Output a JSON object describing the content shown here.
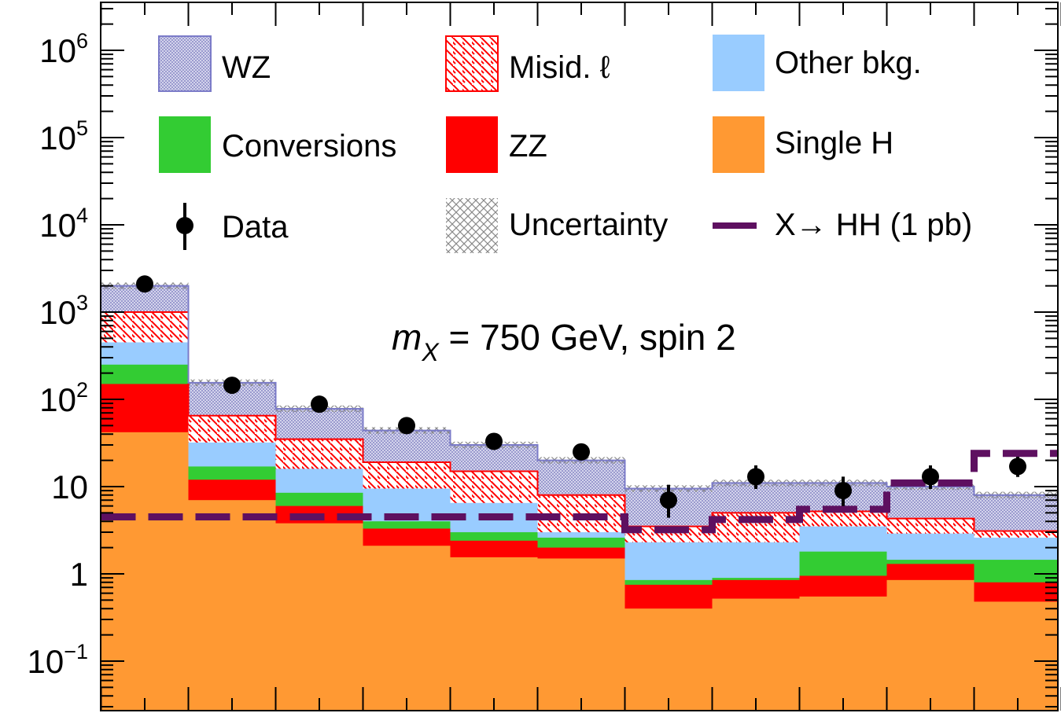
{
  "chart_data": {
    "type": "bar",
    "log_scale_y": true,
    "ylim": [
      0.025,
      5000000
    ],
    "n_bins": 11,
    "y_tick_labels": [
      {
        "value": 1000000,
        "mantissa": "10",
        "exp": "6"
      },
      {
        "value": 100000,
        "mantissa": "10",
        "exp": "5"
      },
      {
        "value": 10000,
        "mantissa": "10",
        "exp": "4"
      },
      {
        "value": 1000,
        "mantissa": "10",
        "exp": "3"
      },
      {
        "value": 100,
        "mantissa": "10",
        "exp": "2"
      },
      {
        "value": 10,
        "mantissa": "10",
        "exp": ""
      },
      {
        "value": 1,
        "mantissa": "1",
        "exp": ""
      },
      {
        "value": 0.1,
        "mantissa": "10",
        "exp": "−1"
      }
    ],
    "annotation": {
      "prefix": "m",
      "subscript": "X",
      "rest": " = 750 GeV, spin 2"
    },
    "legend": {
      "wz": "WZ",
      "misid": "Misid. ℓ",
      "other": "Other bkg.",
      "conversions": "Conversions",
      "zz": "ZZ",
      "singleh": "Single H",
      "data": "Data",
      "uncertainty": "Uncertainty",
      "signal": "X→ HH (1 pb)"
    },
    "colors": {
      "wz_fill": "#c8c8e8",
      "wz_line": "#7b7bc8",
      "misid": "#ff0000",
      "other": "#99ccff",
      "conversions": "#33cc33",
      "zz": "#ff0000",
      "singleh": "#ff9933",
      "signal": "#5e1060"
    },
    "stack_cumulative": {
      "single_h": [
        42,
        7.0,
        3.8,
        2.1,
        1.55,
        1.5,
        0.4,
        0.52,
        0.55,
        0.85,
        0.48
      ],
      "zz": [
        150,
        12,
        6.0,
        3.3,
        2.4,
        2.0,
        0.75,
        0.85,
        0.95,
        1.3,
        0.8
      ],
      "conversions": [
        250,
        17,
        8.5,
        4.0,
        3.0,
        2.6,
        0.85,
        0.9,
        1.8,
        1.45,
        1.45
      ],
      "other_bkg": [
        450,
        32,
        16,
        9.5,
        6.5,
        3.0,
        2.3,
        2.3,
        3.5,
        2.9,
        2.6
      ],
      "misid": [
        1000,
        65,
        35,
        19,
        15,
        8.0,
        3.5,
        5.0,
        5.2,
        4.3,
        3.1
      ],
      "wz": [
        2000,
        155,
        78,
        44,
        30,
        20,
        9.5,
        11,
        11,
        10,
        8.0
      ]
    },
    "data_points": {
      "values": [
        2100,
        145,
        88,
        50,
        33,
        25,
        7,
        13,
        9,
        13,
        17
      ],
      "err_low": [
        50,
        12,
        9,
        7,
        6,
        5,
        2.6,
        3.6,
        3.0,
        3.6,
        4.1
      ],
      "err_high": [
        50,
        12,
        9,
        7,
        6,
        5,
        3.5,
        4.5,
        4.0,
        4.5,
        5.0
      ]
    },
    "signal": [
      4.5,
      4.5,
      4.5,
      4.5,
      4.5,
      4.5,
      3.2,
      4.2,
      5.5,
      11,
      24
    ]
  }
}
